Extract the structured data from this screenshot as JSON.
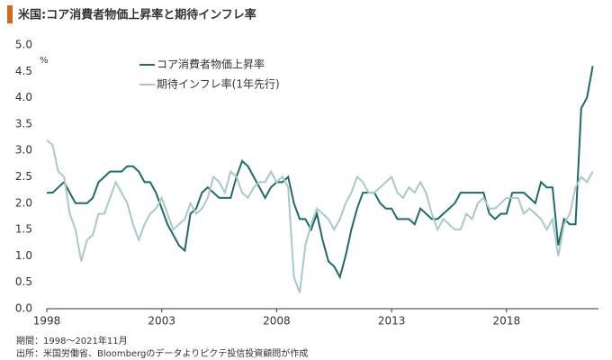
{
  "chart_data": {
    "type": "line",
    "title": "米国:コア消費者物価上昇率と期待インフレ率",
    "unit": "%",
    "notes": [
      "期間：1998～2021年11月",
      "出所：米国労働省、Bloombergのデータよりピクテ投信投資顧問が作成"
    ],
    "x": [
      1998,
      1998.25,
      1998.5,
      1998.75,
      1999,
      1999.25,
      1999.5,
      1999.75,
      2000,
      2000.25,
      2000.5,
      2000.75,
      2001,
      2001.25,
      2001.5,
      2001.75,
      2002,
      2002.25,
      2002.5,
      2002.75,
      2003,
      2003.25,
      2003.5,
      2003.75,
      2004,
      2004.25,
      2004.5,
      2004.75,
      2005,
      2005.25,
      2005.5,
      2005.75,
      2006,
      2006.25,
      2006.5,
      2006.75,
      2007,
      2007.25,
      2007.5,
      2007.75,
      2008,
      2008.25,
      2008.5,
      2008.75,
      2009,
      2009.25,
      2009.5,
      2009.75,
      2010,
      2010.25,
      2010.5,
      2010.75,
      2011,
      2011.25,
      2011.5,
      2011.75,
      2012,
      2012.25,
      2012.5,
      2012.75,
      2013,
      2013.25,
      2013.5,
      2013.75,
      2014,
      2014.25,
      2014.5,
      2014.75,
      2015,
      2015.25,
      2015.5,
      2015.75,
      2016,
      2016.25,
      2016.5,
      2016.75,
      2017,
      2017.25,
      2017.5,
      2017.75,
      2018,
      2018.25,
      2018.5,
      2018.75,
      2019,
      2019.25,
      2019.5,
      2019.75,
      2020,
      2020.25,
      2020.5,
      2020.75,
      2021,
      2021.25,
      2021.5,
      2021.75
    ],
    "series": [
      {
        "name": "コア消費者物価上昇率",
        "color": "#1f6b6b",
        "values": [
          2.2,
          2.2,
          2.3,
          2.4,
          2.2,
          2.0,
          2.0,
          2.0,
          2.1,
          2.4,
          2.5,
          2.6,
          2.6,
          2.6,
          2.7,
          2.7,
          2.6,
          2.4,
          2.4,
          2.2,
          1.9,
          1.6,
          1.4,
          1.2,
          1.1,
          1.8,
          1.9,
          2.2,
          2.3,
          2.2,
          2.1,
          2.1,
          2.1,
          2.5,
          2.8,
          2.7,
          2.5,
          2.3,
          2.1,
          2.3,
          2.4,
          2.4,
          2.5,
          2.0,
          1.7,
          1.7,
          1.5,
          1.8,
          1.3,
          0.9,
          0.8,
          0.6,
          1.0,
          1.5,
          1.9,
          2.2,
          2.2,
          2.2,
          2.0,
          1.9,
          1.9,
          1.7,
          1.7,
          1.7,
          1.6,
          1.9,
          1.8,
          1.7,
          1.7,
          1.8,
          1.9,
          2.0,
          2.2,
          2.2,
          2.2,
          2.2,
          2.2,
          1.8,
          1.7,
          1.8,
          1.8,
          2.2,
          2.2,
          2.2,
          2.1,
          2.0,
          2.4,
          2.3,
          2.3,
          1.2,
          1.7,
          1.6,
          1.6,
          3.8,
          4.0,
          4.6
        ]
      },
      {
        "name": "期待インフレ率(1年先行)",
        "color": "#a9c9c9",
        "values": [
          3.2,
          3.1,
          2.6,
          2.5,
          1.8,
          1.5,
          0.9,
          1.3,
          1.4,
          1.8,
          1.8,
          2.1,
          2.4,
          2.2,
          2.0,
          1.6,
          1.3,
          1.6,
          1.8,
          1.9,
          2.1,
          1.8,
          1.5,
          1.6,
          1.7,
          2.0,
          1.8,
          1.9,
          2.1,
          2.5,
          2.4,
          2.2,
          2.6,
          2.5,
          2.2,
          2.1,
          2.3,
          2.4,
          2.4,
          2.6,
          2.4,
          2.5,
          2.3,
          0.6,
          0.3,
          1.2,
          1.6,
          1.9,
          1.8,
          1.7,
          1.5,
          1.7,
          2.0,
          2.2,
          2.5,
          2.4,
          2.2,
          2.2,
          2.3,
          2.4,
          2.5,
          2.2,
          2.1,
          2.3,
          2.2,
          2.4,
          2.2,
          1.8,
          1.5,
          1.7,
          1.6,
          1.5,
          1.5,
          1.8,
          1.7,
          2.0,
          2.1,
          1.9,
          1.9,
          2.0,
          2.1,
          2.1,
          2.1,
          1.8,
          1.9,
          1.8,
          1.7,
          1.5,
          1.7,
          1.0,
          1.6,
          1.8,
          2.3,
          2.5,
          2.4,
          2.6
        ]
      }
    ],
    "xlim": [
      1998,
      2022
    ],
    "xticks": [
      1998,
      2003,
      2008,
      2013,
      2018
    ],
    "ylim": [
      0,
      5
    ],
    "yticks": [
      {
        "value": 0,
        "label": "0.0"
      },
      0.5,
      {
        "value": 1,
        "label": "1.0"
      },
      1.5,
      {
        "value": 2,
        "label": "2.0"
      },
      2.5,
      {
        "value": 3,
        "label": "3.0"
      },
      3.5,
      {
        "value": 4,
        "label": "4.0"
      },
      4.5,
      {
        "value": 5,
        "label": "5.0"
      }
    ],
    "grid": false
  }
}
